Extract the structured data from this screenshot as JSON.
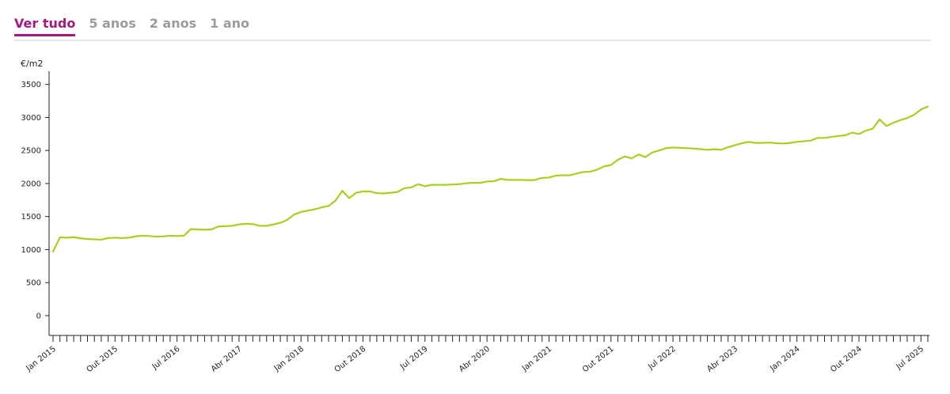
{
  "tabs": [
    {
      "label": "Ver tudo",
      "active": true
    },
    {
      "label": "5 anos",
      "active": false
    },
    {
      "label": "2 anos",
      "active": false
    },
    {
      "label": "1 ano",
      "active": false
    }
  ],
  "colors": {
    "accent": "#a4197f",
    "line": "#a8cf1f",
    "tab_inactive": "#9b9b9b"
  },
  "chart_data": {
    "type": "line",
    "ylabel": "€/m2",
    "ylim": [
      -300,
      3700
    ],
    "yticks": [
      0,
      500,
      1000,
      1500,
      2000,
      2500,
      3000,
      3500
    ],
    "x_start": "2015-01",
    "x_end": "2025-07",
    "xtick_labels": [
      "Jan 2015",
      "Out 2015",
      "Jul 2016",
      "Abr 2017",
      "Jan 2018",
      "Out 2018",
      "Jul 2019",
      "Abr 2020",
      "Jan 2021",
      "Out 2021",
      "Jul 2022",
      "Abr 2023",
      "Jan 2024",
      "Out 2024",
      "Jul 2025"
    ],
    "series": [
      {
        "values": [
          970,
          1185,
          1180,
          1188,
          1170,
          1160,
          1155,
          1150,
          1175,
          1180,
          1175,
          1180,
          1200,
          1210,
          1205,
          1195,
          1200,
          1210,
          1205,
          1210,
          1310,
          1305,
          1300,
          1305,
          1350,
          1355,
          1360,
          1380,
          1390,
          1385,
          1360,
          1360,
          1380,
          1405,
          1450,
          1530,
          1570,
          1590,
          1610,
          1640,
          1660,
          1740,
          1890,
          1780,
          1860,
          1880,
          1880,
          1855,
          1850,
          1860,
          1870,
          1930,
          1940,
          1990,
          1960,
          1980,
          1980,
          1980,
          1985,
          1990,
          2005,
          2010,
          2010,
          2030,
          2035,
          2070,
          2055,
          2055,
          2055,
          2050,
          2055,
          2085,
          2090,
          2120,
          2125,
          2125,
          2150,
          2175,
          2180,
          2210,
          2260,
          2280,
          2360,
          2410,
          2380,
          2440,
          2400,
          2470,
          2500,
          2535,
          2545,
          2540,
          2535,
          2530,
          2520,
          2510,
          2520,
          2510,
          2550,
          2580,
          2610,
          2630,
          2615,
          2615,
          2620,
          2610,
          2605,
          2615,
          2630,
          2640,
          2650,
          2690,
          2690,
          2705,
          2720,
          2730,
          2770,
          2750,
          2800,
          2830,
          2970,
          2870,
          2920,
          2960,
          2990,
          3040,
          3120,
          3165
        ]
      }
    ]
  }
}
